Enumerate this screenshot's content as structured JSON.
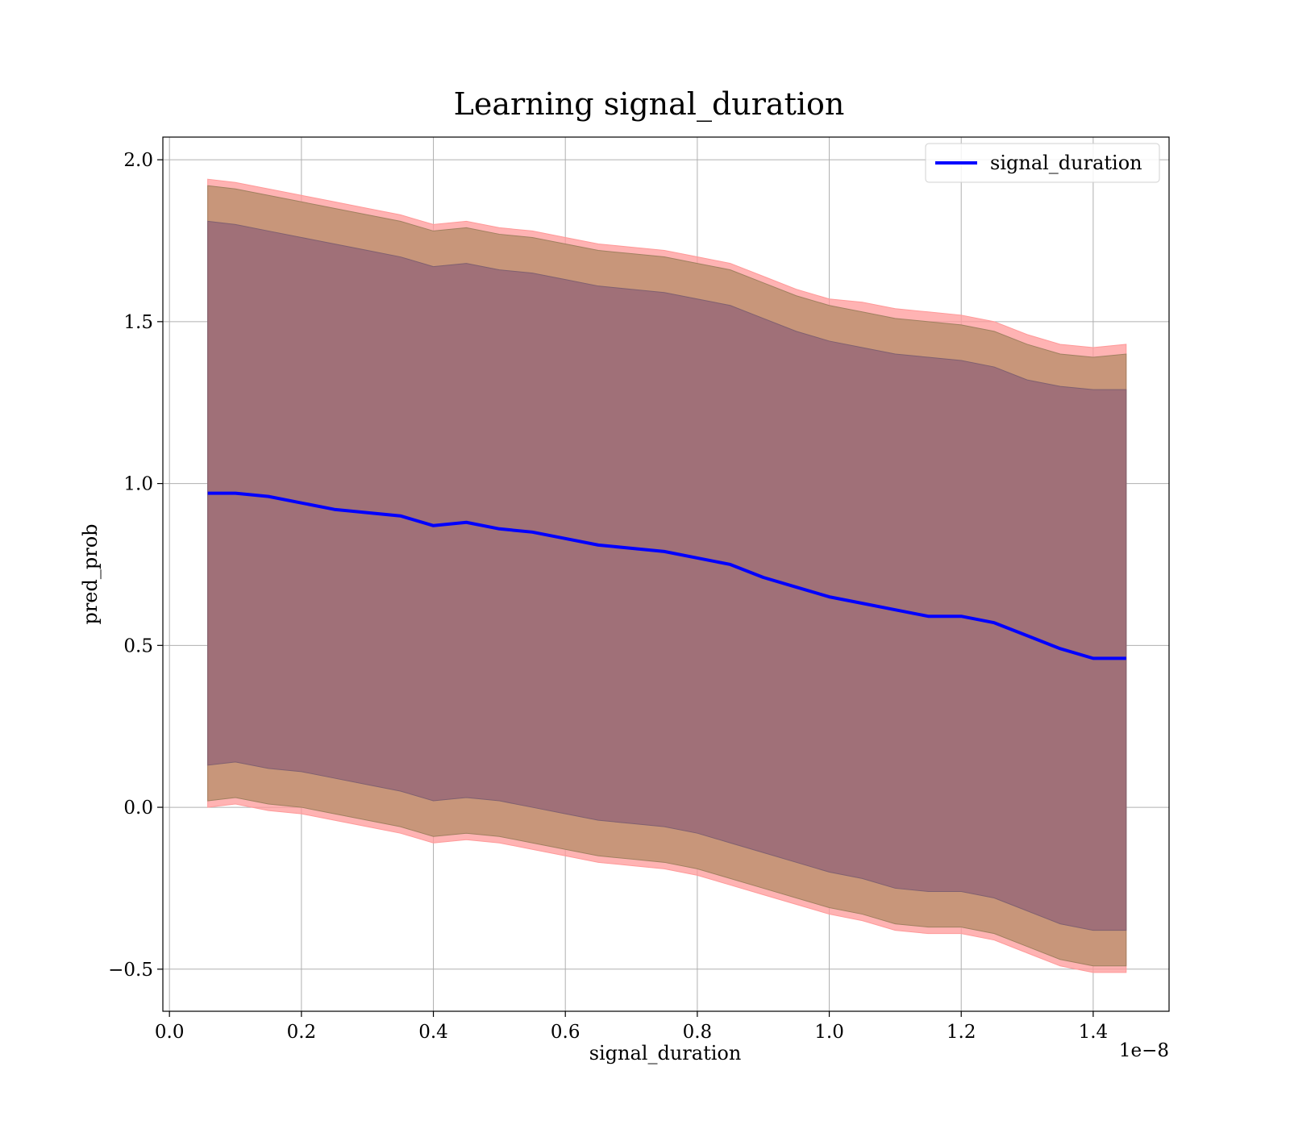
{
  "chart_data": {
    "type": "line",
    "title": "Learning signal_duration",
    "xlabel": "signal_duration",
    "ylabel": "pred_prob",
    "x_offset_text": "1e−8",
    "xlim": [
      -0.01,
      1.515
    ],
    "ylim": [
      -0.63,
      2.07
    ],
    "x_ticks": [
      0.0,
      0.2,
      0.4,
      0.6,
      0.8,
      1.0,
      1.2,
      1.4
    ],
    "x_tick_labels": [
      "0.0",
      "0.2",
      "0.4",
      "0.6",
      "0.8",
      "1.0",
      "1.2",
      "1.4"
    ],
    "y_ticks": [
      -0.5,
      0.0,
      0.5,
      1.0,
      1.5,
      2.0
    ],
    "y_tick_labels": [
      "−0.5",
      "0.0",
      "0.5",
      "1.0",
      "1.5",
      "2.0"
    ],
    "grid": true,
    "legend": {
      "position": "top-right",
      "entries": [
        "signal_duration"
      ]
    },
    "colors": {
      "line": "#0000ff",
      "band_outer": "#ff9999",
      "band_middle": "#c8967a",
      "band_inner": "#a07078",
      "grid": "#b0b0b0"
    },
    "x": [
      0.058,
      0.1,
      0.15,
      0.2,
      0.25,
      0.3,
      0.35,
      0.4,
      0.45,
      0.5,
      0.55,
      0.6,
      0.65,
      0.7,
      0.75,
      0.8,
      0.85,
      0.9,
      0.95,
      1.0,
      1.05,
      1.1,
      1.15,
      1.2,
      1.25,
      1.3,
      1.35,
      1.4,
      1.45
    ],
    "series": [
      {
        "name": "signal_duration",
        "values": [
          0.97,
          0.97,
          0.96,
          0.94,
          0.92,
          0.91,
          0.9,
          0.87,
          0.88,
          0.86,
          0.85,
          0.83,
          0.81,
          0.8,
          0.79,
          0.77,
          0.75,
          0.71,
          0.68,
          0.65,
          0.63,
          0.61,
          0.59,
          0.59,
          0.57,
          0.53,
          0.49,
          0.46,
          0.46
        ],
        "band_outer": {
          "upper": [
            1.94,
            1.93,
            1.91,
            1.89,
            1.87,
            1.85,
            1.83,
            1.8,
            1.81,
            1.79,
            1.78,
            1.76,
            1.74,
            1.73,
            1.72,
            1.7,
            1.68,
            1.64,
            1.6,
            1.57,
            1.56,
            1.54,
            1.53,
            1.52,
            1.5,
            1.46,
            1.43,
            1.42,
            1.43
          ],
          "lower": [
            0.0,
            0.01,
            -0.01,
            -0.02,
            -0.04,
            -0.06,
            -0.08,
            -0.11,
            -0.1,
            -0.11,
            -0.13,
            -0.15,
            -0.17,
            -0.18,
            -0.19,
            -0.21,
            -0.24,
            -0.27,
            -0.3,
            -0.33,
            -0.35,
            -0.38,
            -0.39,
            -0.39,
            -0.41,
            -0.45,
            -0.49,
            -0.51,
            -0.51
          ]
        },
        "band_middle": {
          "upper": [
            1.92,
            1.91,
            1.89,
            1.87,
            1.85,
            1.83,
            1.81,
            1.78,
            1.79,
            1.77,
            1.76,
            1.74,
            1.72,
            1.71,
            1.7,
            1.68,
            1.66,
            1.62,
            1.58,
            1.55,
            1.53,
            1.51,
            1.5,
            1.49,
            1.47,
            1.43,
            1.4,
            1.39,
            1.4
          ],
          "lower": [
            0.02,
            0.03,
            0.01,
            0.0,
            -0.02,
            -0.04,
            -0.06,
            -0.09,
            -0.08,
            -0.09,
            -0.11,
            -0.13,
            -0.15,
            -0.16,
            -0.17,
            -0.19,
            -0.22,
            -0.25,
            -0.28,
            -0.31,
            -0.33,
            -0.36,
            -0.37,
            -0.37,
            -0.39,
            -0.43,
            -0.47,
            -0.49,
            -0.49
          ]
        },
        "band_inner": {
          "upper": [
            1.81,
            1.8,
            1.78,
            1.76,
            1.74,
            1.72,
            1.7,
            1.67,
            1.68,
            1.66,
            1.65,
            1.63,
            1.61,
            1.6,
            1.59,
            1.57,
            1.55,
            1.51,
            1.47,
            1.44,
            1.42,
            1.4,
            1.39,
            1.38,
            1.36,
            1.32,
            1.3,
            1.29,
            1.29
          ],
          "lower": [
            0.13,
            0.14,
            0.12,
            0.11,
            0.09,
            0.07,
            0.05,
            0.02,
            0.03,
            0.02,
            0.0,
            -0.02,
            -0.04,
            -0.05,
            -0.06,
            -0.08,
            -0.11,
            -0.14,
            -0.17,
            -0.2,
            -0.22,
            -0.25,
            -0.26,
            -0.26,
            -0.28,
            -0.32,
            -0.36,
            -0.38,
            -0.38
          ]
        }
      }
    ]
  }
}
